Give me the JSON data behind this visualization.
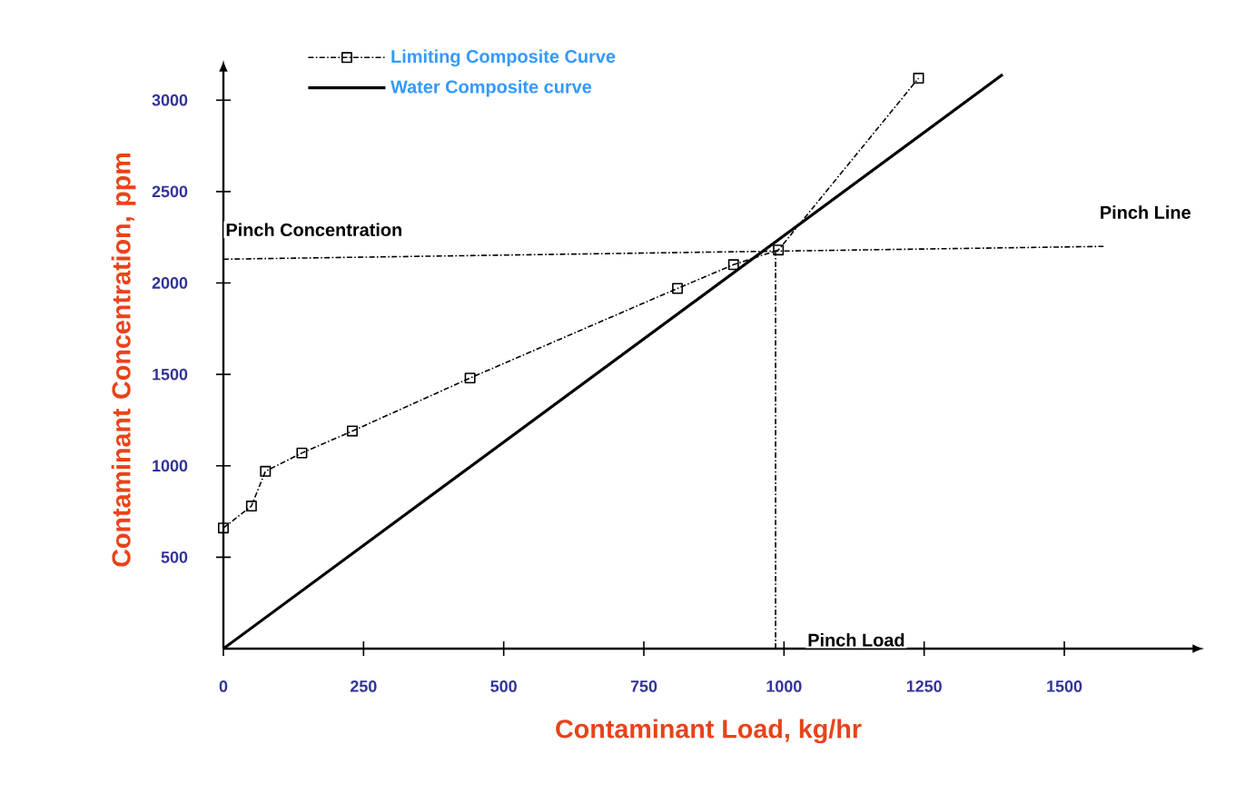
{
  "chart_data": {
    "type": "line",
    "xlabel": "Contaminant Load,  kg/hr",
    "ylabel": "Contaminant Concentration, ppm",
    "xlim": [
      0,
      1730
    ],
    "ylim": [
      0,
      3160
    ],
    "xticks": [
      0,
      250,
      500,
      750,
      1000,
      1250,
      1500
    ],
    "yticks": [
      500,
      1000,
      1500,
      2000,
      2500,
      3000
    ],
    "legend": "top",
    "grid": false,
    "series": [
      {
        "name": "Limiting Composite Curve",
        "color": "#000000",
        "line_style": "dotted",
        "marker": "square",
        "x": [
          0,
          50,
          75,
          140,
          230,
          440,
          810,
          910,
          990,
          1240
        ],
        "values": [
          660,
          780,
          970,
          1070,
          1190,
          1480,
          1970,
          2100,
          2180,
          3120
        ]
      },
      {
        "name": "Water Composite curve",
        "color": "#000000",
        "line_style": "solid",
        "marker": "none",
        "x": [
          0,
          1390
        ],
        "values": [
          0,
          3140
        ]
      },
      {
        "color": "#000000",
        "line_style": "dotted",
        "marker": "none",
        "x": [
          0,
          1570
        ],
        "values": [
          2130,
          2200
        ]
      },
      {
        "color": "#000000",
        "line_style": "dotted",
        "marker": "none",
        "x": [
          985,
          985
        ],
        "values": [
          0,
          2170
        ]
      }
    ],
    "annotations": [
      "Pinch Concentration",
      "Pinch Line",
      "Pinch Load"
    ]
  }
}
